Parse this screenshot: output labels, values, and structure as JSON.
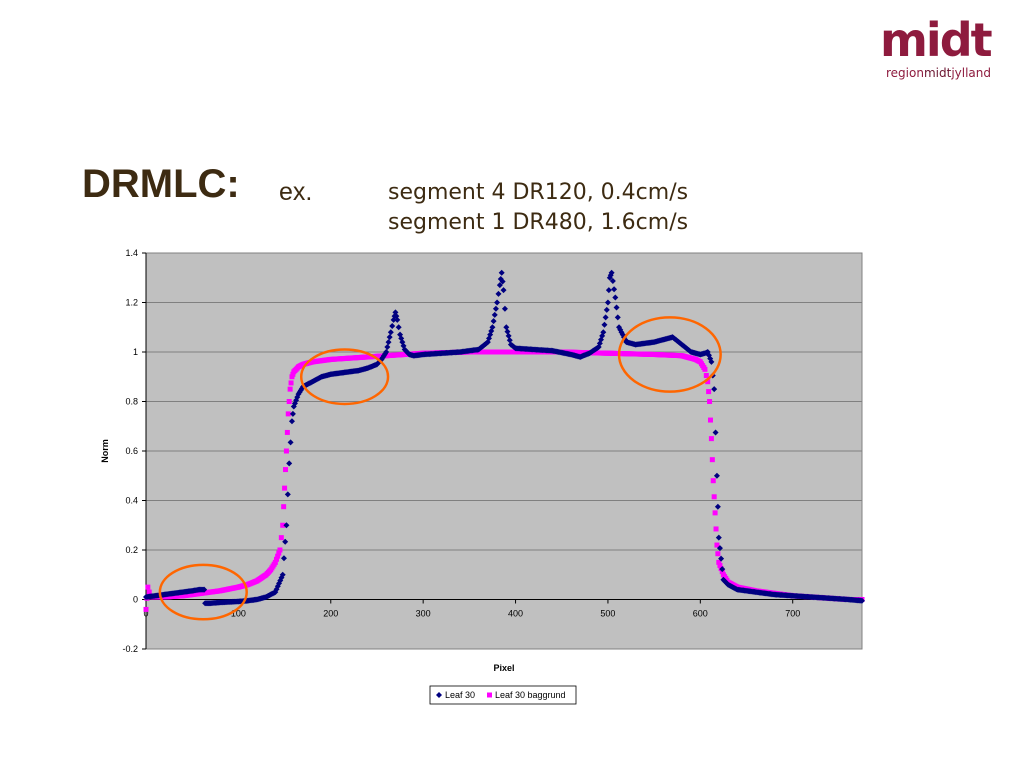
{
  "logo": {
    "main": "midt",
    "sub_region": "region",
    "sub_midt": "midt",
    "sub_jylland": "jylland",
    "color": "#8e1b3e"
  },
  "title": {
    "main": "DRMLC:",
    "ex": "ex.",
    "line1": "segment 4 DR120, 0.4cm/s",
    "line2": "segment 1 DR480, 1.6cm/s"
  },
  "chart_data": {
    "type": "scatter",
    "xlabel": "Pixel",
    "ylabel": "Norm",
    "xlim": [
      0,
      775
    ],
    "ylim": [
      -0.2,
      1.4
    ],
    "xticks": [
      0,
      100,
      200,
      300,
      400,
      500,
      600,
      700
    ],
    "yticks": [
      -0.2,
      0,
      0.2,
      0.4,
      0.6,
      0.8,
      1,
      1.2,
      1.4
    ],
    "grid": "horizontal",
    "plot_background": "#c0c0c0",
    "legend_position": "bottom",
    "series": [
      {
        "name": "Leaf 30",
        "marker": "diamond",
        "color": "#000080",
        "x": [
          0,
          10,
          20,
          30,
          40,
          50,
          58,
          63,
          64,
          70,
          80,
          90,
          100,
          110,
          120,
          130,
          140,
          148,
          152,
          155,
          158,
          160,
          165,
          170,
          180,
          190,
          200,
          210,
          220,
          230,
          240,
          250,
          255,
          260,
          265,
          268,
          270,
          272,
          275,
          280,
          285,
          290,
          300,
          320,
          340,
          360,
          370,
          375,
          380,
          383,
          385,
          387,
          390,
          395,
          400,
          420,
          440,
          460,
          470,
          480,
          490,
          495,
          500,
          502,
          504,
          508,
          512,
          520,
          530,
          540,
          550,
          560,
          570,
          580,
          590,
          600,
          605,
          608,
          612,
          615,
          618,
          620,
          625,
          630,
          640,
          660,
          680,
          700,
          720,
          740,
          760,
          775
        ],
        "y": [
          0.01,
          0.015,
          0.02,
          0.025,
          0.03,
          0.035,
          0.04,
          0.04,
          -0.015,
          -0.015,
          -0.012,
          -0.01,
          -0.008,
          -0.005,
          0.0,
          0.01,
          0.03,
          0.1,
          0.3,
          0.55,
          0.72,
          0.78,
          0.83,
          0.86,
          0.88,
          0.9,
          0.91,
          0.915,
          0.92,
          0.925,
          0.935,
          0.95,
          0.97,
          1.0,
          1.08,
          1.13,
          1.16,
          1.13,
          1.07,
          1.01,
          0.99,
          0.985,
          0.99,
          0.995,
          1.0,
          1.01,
          1.04,
          1.1,
          1.2,
          1.27,
          1.32,
          1.25,
          1.1,
          1.03,
          1.015,
          1.01,
          1.005,
          0.99,
          0.98,
          0.995,
          1.02,
          1.08,
          1.2,
          1.3,
          1.32,
          1.22,
          1.1,
          1.04,
          1.03,
          1.035,
          1.04,
          1.05,
          1.06,
          1.03,
          1.0,
          0.99,
          0.995,
          1.0,
          0.96,
          0.85,
          0.5,
          0.25,
          0.08,
          0.06,
          0.04,
          0.03,
          0.02,
          0.015,
          0.01,
          0.005,
          0.0,
          -0.005
        ]
      },
      {
        "name": "Leaf 30 baggrund",
        "marker": "square",
        "color": "#ff00ff",
        "x": [
          0,
          2,
          5,
          20,
          40,
          60,
          80,
          100,
          110,
          120,
          130,
          135,
          140,
          145,
          148,
          150,
          152,
          154,
          156,
          158,
          160,
          165,
          170,
          180,
          200,
          220,
          240,
          260,
          280,
          300,
          350,
          400,
          450,
          500,
          550,
          580,
          595,
          600,
          605,
          608,
          610,
          612,
          614,
          616,
          618,
          620,
          625,
          630,
          640,
          660,
          680,
          700,
          720,
          740,
          760,
          775
        ],
        "y": [
          -0.04,
          0.05,
          0.01,
          0.01,
          0.015,
          0.025,
          0.035,
          0.05,
          0.06,
          0.075,
          0.1,
          0.12,
          0.15,
          0.2,
          0.3,
          0.45,
          0.6,
          0.75,
          0.85,
          0.9,
          0.92,
          0.94,
          0.95,
          0.96,
          0.97,
          0.975,
          0.98,
          0.985,
          0.99,
          0.995,
          1.0,
          1.0,
          1.0,
          0.995,
          0.99,
          0.985,
          0.97,
          0.96,
          0.93,
          0.88,
          0.8,
          0.65,
          0.48,
          0.35,
          0.22,
          0.15,
          0.1,
          0.07,
          0.05,
          0.035,
          0.025,
          0.015,
          0.01,
          0.005,
          0.0,
          0.0
        ]
      }
    ],
    "annotations": [
      {
        "shape": "ellipse",
        "cx": 62,
        "cy": 0.03,
        "rx": 47,
        "ry": 0.11,
        "color": "#ff6600"
      },
      {
        "shape": "ellipse",
        "cx": 215,
        "cy": 0.9,
        "rx": 47,
        "ry": 0.11,
        "color": "#ff6600"
      },
      {
        "shape": "ellipse",
        "cx": 567,
        "cy": 0.99,
        "rx": 55,
        "ry": 0.15,
        "color": "#ff6600"
      }
    ]
  }
}
